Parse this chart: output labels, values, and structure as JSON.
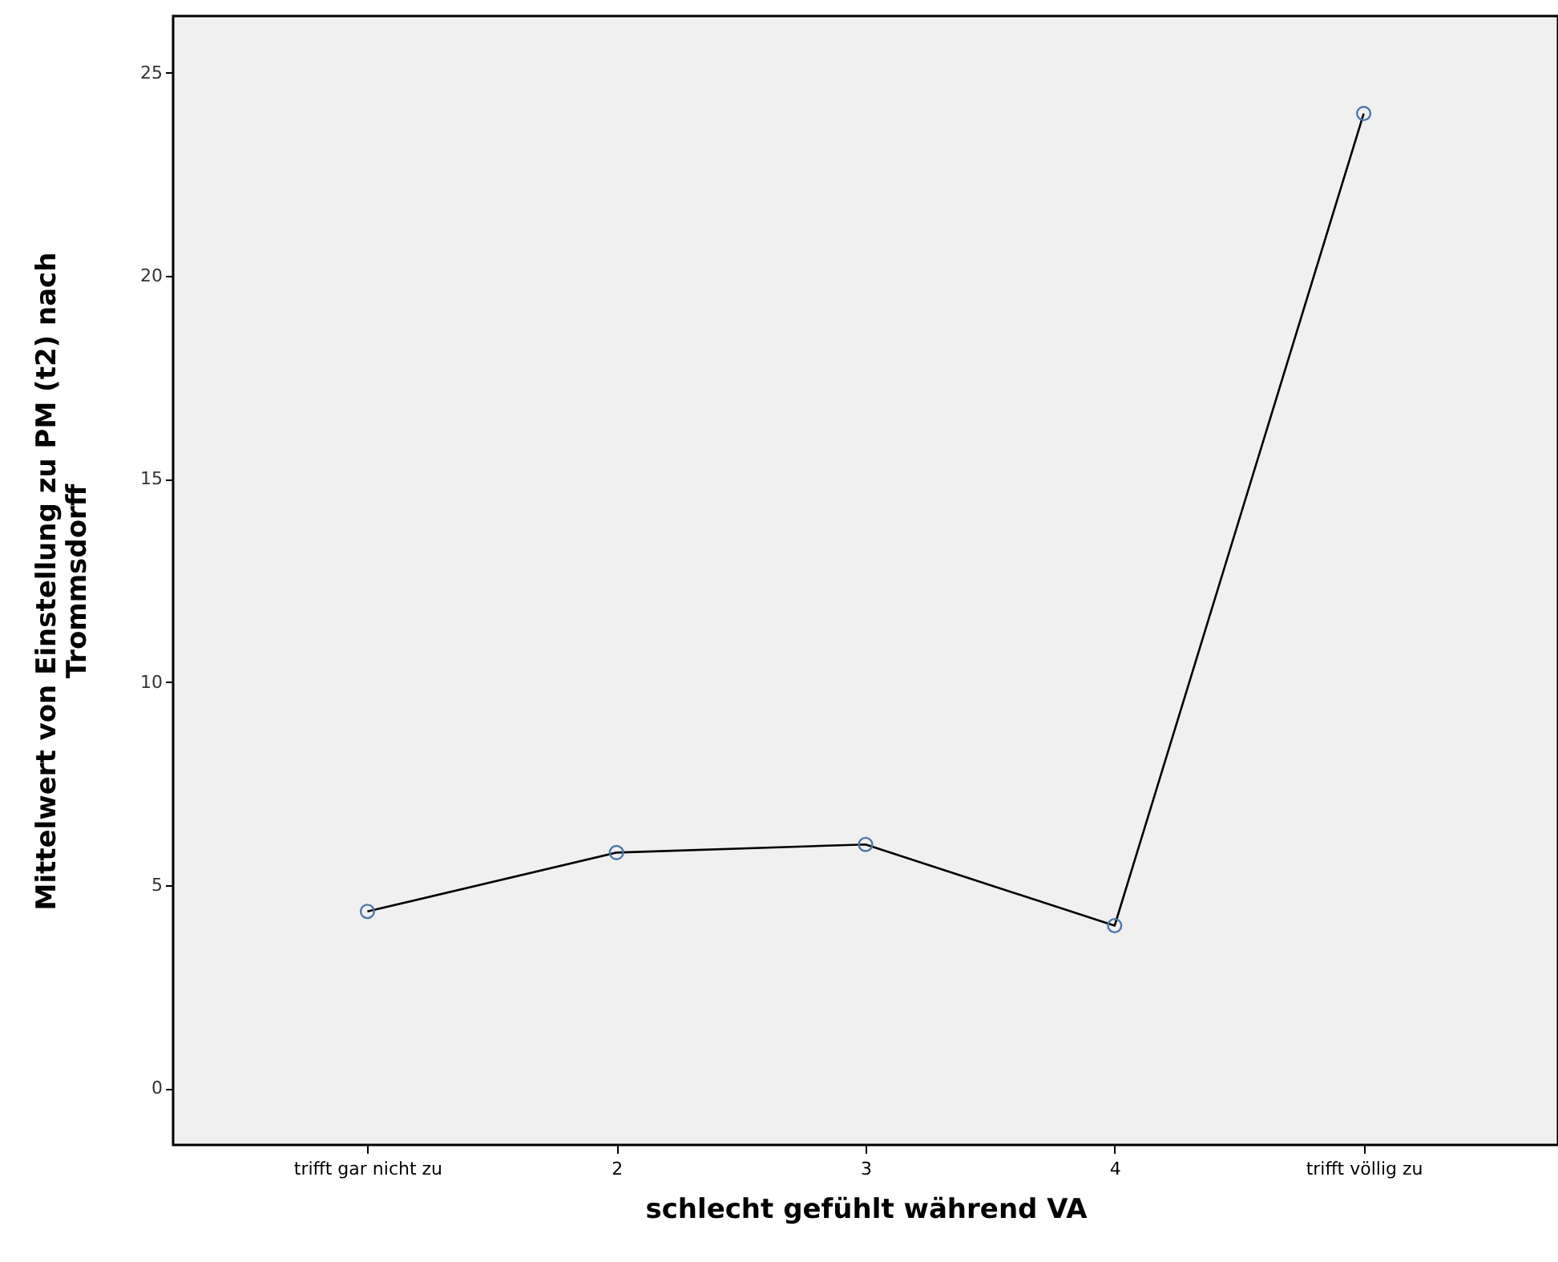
{
  "chart_data": {
    "type": "line",
    "xlabel": "schlecht gefühlt während VA",
    "ylabel": "Mittelwert von Einstellung zu PM (t2) nach Trommsdorff",
    "categories": [
      "trifft gar nicht zu",
      "2",
      "3",
      "4",
      "trifft völlig zu"
    ],
    "series": [
      {
        "color": "#000000",
        "values": [
          4.35,
          5.8,
          6.0,
          4.0,
          24.0
        ]
      }
    ],
    "ylim": [
      -1.4,
      26.4
    ],
    "yticks": [
      0,
      5,
      10,
      15,
      20,
      25
    ],
    "grid": false,
    "legend": false,
    "marker": "circle",
    "line_style": "solid"
  }
}
